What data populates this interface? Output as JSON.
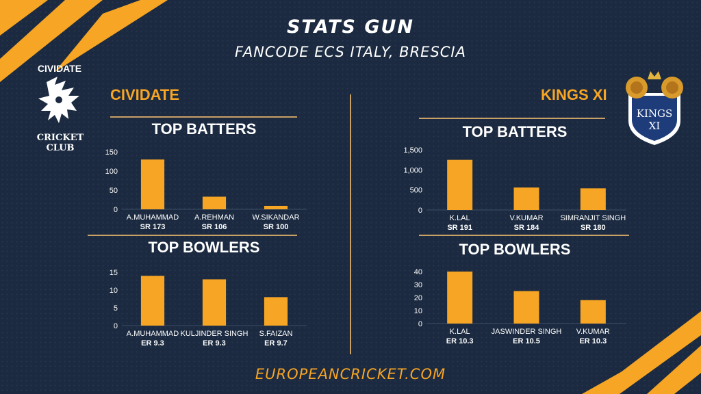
{
  "header": {
    "title": "STATS GUN",
    "subtitle": "FANCODE ECS ITALY, BRESCIA"
  },
  "teams": {
    "left": {
      "name": "CIVIDATE",
      "logo_top": "CIVIDATE",
      "logo_bottom": "CRICKET CLUB"
    },
    "right": {
      "name": "KINGS XI",
      "logo_line1": "KINGS",
      "logo_line2": "XI"
    }
  },
  "footer": "EUROPEANCRICKET.COM",
  "colors": {
    "accent": "#f6a524",
    "background": "#1b2a40",
    "rule": "#c9a066"
  },
  "chart_data": [
    {
      "id": "cividate-batters",
      "type": "bar",
      "title": "TOP BATTERS",
      "categories": [
        "A.MUHAMMAD",
        "A.REHMAN",
        "W.SIKANDAR"
      ],
      "sublabels": [
        "SR 173",
        "SR 106",
        "SR 100"
      ],
      "values": [
        130,
        33,
        9
      ],
      "ylim": [
        0,
        150
      ],
      "yticks": [
        0,
        50,
        100,
        150
      ],
      "ytick_labels": [
        "0",
        "50",
        "100",
        "150"
      ],
      "grid": false
    },
    {
      "id": "cividate-bowlers",
      "type": "bar",
      "title": "TOP BOWLERS",
      "categories": [
        "A.MUHAMMAD",
        "KULJINDER SINGH",
        "S.FAIZAN"
      ],
      "sublabels": [
        "ER 9.3",
        "ER 9.3",
        "ER 9.7"
      ],
      "values": [
        14,
        13,
        8
      ],
      "ylim": [
        0,
        15
      ],
      "yticks": [
        0,
        5,
        10,
        15
      ],
      "ytick_labels": [
        "0",
        "5",
        "10",
        "15"
      ],
      "grid": false
    },
    {
      "id": "kings-batters",
      "type": "bar",
      "title": "TOP BATTERS",
      "categories": [
        "K.LAL",
        "V.KUMAR",
        "SIMRANJIT SINGH"
      ],
      "sublabels": [
        "SR 191",
        "SR 184",
        "SR 180"
      ],
      "values": [
        1250,
        560,
        540
      ],
      "ylim": [
        0,
        1500
      ],
      "yticks": [
        0,
        500,
        1000,
        1500
      ],
      "ytick_labels": [
        "0",
        "500",
        "1,000",
        "1,500"
      ],
      "grid": false
    },
    {
      "id": "kings-bowlers",
      "type": "bar",
      "title": "TOP BOWLERS",
      "categories": [
        "K.LAL",
        "JASWINDER SINGH",
        "V.KUMAR"
      ],
      "sublabels": [
        "ER 10.3",
        "ER 10.5",
        "ER 10.3"
      ],
      "values": [
        40,
        25,
        18
      ],
      "ylim": [
        0,
        40
      ],
      "yticks": [
        0,
        10,
        20,
        30,
        40
      ],
      "ytick_labels": [
        "0",
        "10",
        "20",
        "30",
        "40"
      ],
      "grid": false
    }
  ]
}
